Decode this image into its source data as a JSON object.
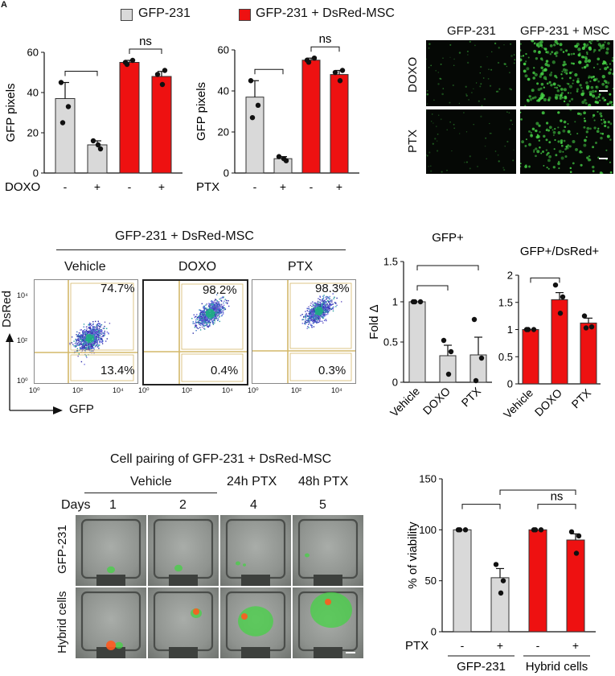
{
  "legend": {
    "items": [
      {
        "label": "GFP-231",
        "color": "#d9d9d9"
      },
      {
        "label": "GFP-231 + DsRed-MSC",
        "color": "#ee1111"
      }
    ]
  },
  "panel_a_label": "A",
  "colors": {
    "grey": "#d9d9d9",
    "red": "#ee1111",
    "green": "#46d246",
    "gate": "#d4b86a"
  },
  "micro_panel": {
    "col_labels": [
      "GFP-231",
      "GFP-231 + MSC"
    ],
    "row_labels": [
      "DOXO",
      "PTX"
    ]
  },
  "flow_panel": {
    "title": "GFP-231 + DsRed-MSC",
    "plots": [
      {
        "label": "Vehicle",
        "upper_right": "74.7%",
        "lower_right": "13.4%"
      },
      {
        "label": "DOXO",
        "upper_right": "98.2%",
        "lower_right": "0.4%"
      },
      {
        "label": "PTX",
        "upper_right": "98.3%",
        "lower_right": "0.3%"
      }
    ],
    "y_axis_label": "DsRed",
    "x_axis_label": "GFP",
    "y_ticks": [
      "10⁴",
      "10²",
      "10⁰"
    ],
    "x_ticks": [
      "10⁰",
      "10²",
      "10⁴"
    ]
  },
  "pairing_panel": {
    "title": "Cell pairing of GFP-231 + DsRed-MSC",
    "vehicle_label": "Vehicle",
    "ptx24_label": "24h PTX",
    "ptx48_label": "48h PTX",
    "days_label": "Days",
    "days": [
      "1",
      "2",
      "4",
      "5"
    ],
    "row_labels": [
      "GFP-231",
      "Hybrid cells"
    ]
  },
  "chart_data": [
    {
      "type": "bar",
      "ylabel": "GFP pixels",
      "treatment_label": "DOXO",
      "ylim": [
        0,
        60
      ],
      "yticks": [
        0,
        20,
        40,
        60
      ],
      "categories": [
        "-",
        "+",
        "-",
        "+"
      ],
      "values": [
        37,
        14,
        55,
        48
      ],
      "errors": [
        8,
        2,
        1,
        2.5
      ],
      "points": [
        [
          45,
          33,
          25
        ],
        [
          16,
          12,
          14
        ],
        [
          55,
          56,
          54
        ],
        [
          49,
          51,
          44
        ]
      ],
      "bar_colors": [
        "grey",
        "grey",
        "red",
        "red"
      ],
      "brackets": [
        {
          "from": 0,
          "to": 1,
          "label": ""
        },
        {
          "from": 2,
          "to": 3,
          "label": "ns"
        }
      ]
    },
    {
      "type": "bar",
      "ylabel": "GFP pixels",
      "treatment_label": "PTX",
      "ylim": [
        0,
        60
      ],
      "yticks": [
        0,
        20,
        40,
        60
      ],
      "categories": [
        "-",
        "+",
        "-",
        "+"
      ],
      "values": [
        37,
        7,
        55,
        48
      ],
      "errors": [
        8,
        1,
        1,
        2
      ],
      "points": [
        [
          45,
          33,
          27
        ],
        [
          8,
          6,
          7
        ],
        [
          55,
          56,
          54
        ],
        [
          49,
          50,
          45
        ]
      ],
      "bar_colors": [
        "grey",
        "grey",
        "red",
        "red"
      ],
      "brackets": [
        {
          "from": 0,
          "to": 1,
          "label": ""
        },
        {
          "from": 2,
          "to": 3,
          "label": "ns"
        }
      ]
    },
    {
      "type": "bar",
      "title": "GFP+",
      "ylabel": "Fold Δ",
      "ylim": [
        0,
        1.5
      ],
      "yticks": [
        0,
        0.5,
        1,
        1.5
      ],
      "categories": [
        "Vehicle",
        "DOXO",
        "PTX"
      ],
      "values": [
        1,
        0.33,
        0.34
      ],
      "errors": [
        0,
        0.13,
        0.22
      ],
      "points": [
        [
          1,
          1,
          1
        ],
        [
          0.52,
          0.38,
          0.1
        ],
        [
          0.78,
          0.3,
          0.02
        ]
      ],
      "bar_colors": [
        "grey",
        "grey",
        "grey"
      ],
      "brackets": [
        {
          "from": 0,
          "to": 1,
          "label": ""
        },
        {
          "from": 0,
          "to": 2,
          "label": ""
        }
      ]
    },
    {
      "type": "bar",
      "title": "GFP+/DsRed+",
      "ylabel": "",
      "ylim": [
        0,
        2
      ],
      "yticks": [
        0,
        0.5,
        1,
        1.5,
        2
      ],
      "categories": [
        "Vehicle",
        "DOXO",
        "PTX"
      ],
      "values": [
        1,
        1.55,
        1.12
      ],
      "errors": [
        0,
        0.13,
        0.09
      ],
      "points": [
        [
          1,
          1,
          1
        ],
        [
          1.82,
          1.6,
          1.3
        ],
        [
          1.25,
          1.05,
          1.03
        ]
      ],
      "bar_colors": [
        "red",
        "red",
        "red"
      ],
      "brackets": [
        {
          "from": 0,
          "to": 1,
          "label": ""
        }
      ]
    },
    {
      "type": "bar",
      "ylabel": "% of viability",
      "treatment_label": "PTX",
      "ylim": [
        0,
        150
      ],
      "yticks": [
        0,
        50,
        100,
        150
      ],
      "categories": [
        "-",
        "+",
        "-",
        "+"
      ],
      "values": [
        100,
        53,
        100,
        90
      ],
      "errors": [
        0,
        9,
        0,
        6
      ],
      "points": [
        [
          100,
          100,
          100
        ],
        [
          66,
          50,
          38
        ],
        [
          100,
          100,
          100
        ],
        [
          98,
          94,
          77
        ]
      ],
      "bar_colors": [
        "grey",
        "grey",
        "red",
        "red"
      ],
      "brackets": [
        {
          "from": 0,
          "to": 1,
          "label": ""
        },
        {
          "from": 2,
          "to": 3,
          "label": "ns"
        },
        {
          "from": 1,
          "to": 3,
          "label": ""
        }
      ],
      "group_labels": [
        "GFP-231",
        "Hybrid cells"
      ]
    }
  ]
}
